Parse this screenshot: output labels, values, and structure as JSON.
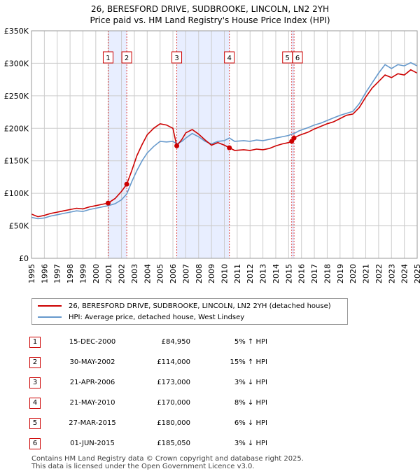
{
  "header": {
    "title": "26, BERESFORD DRIVE, SUDBROOKE, LINCOLN, LN2 2YH",
    "subtitle": "Price paid vs. HM Land Registry's House Price Index (HPI)"
  },
  "colors": {
    "property": "#cc0000",
    "hpi": "#6699cc",
    "shade": "#e8eeff",
    "grid": "#cccccc"
  },
  "legend": {
    "property_label": "26, BERESFORD DRIVE, SUDBROOKE, LINCOLN, LN2 2YH (detached house)",
    "hpi_label": "HPI: Average price, detached house, West Lindsey"
  },
  "chart_data": {
    "type": "line",
    "title": "Price paid vs. HM Land Registry's House Price Index (HPI)",
    "xlim": [
      1995,
      2025
    ],
    "ylim": [
      0,
      350000
    ],
    "y_ticks": [
      0,
      50000,
      100000,
      150000,
      200000,
      250000,
      300000,
      350000
    ],
    "y_tick_labels": [
      "£0",
      "£50K",
      "£100K",
      "£150K",
      "£200K",
      "£250K",
      "£300K",
      "£350K"
    ],
    "x_ticks": [
      "1995",
      "1996",
      "1997",
      "1998",
      "1999",
      "2000",
      "2001",
      "2002",
      "2003",
      "2004",
      "2005",
      "2006",
      "2007",
      "2008",
      "2009",
      "2010",
      "2011",
      "2012",
      "2013",
      "2014",
      "2015",
      "2016",
      "2017",
      "2018",
      "2019",
      "2020",
      "2021",
      "2022",
      "2023",
      "2024",
      "2025"
    ],
    "shaded_ranges": [
      [
        2000.96,
        2002.41
      ],
      [
        2006.3,
        2010.39
      ],
      [
        2015.24,
        2015.42
      ]
    ],
    "series": [
      {
        "name": "26, BERESFORD DRIVE, SUDBROOKE, LINCOLN, LN2 2YH (detached house)",
        "color": "#cc0000",
        "x": [
          1995,
          1995.5,
          1996,
          1996.5,
          1997,
          1997.5,
          1998,
          1998.5,
          1999,
          1999.5,
          2000,
          2000.5,
          2000.96,
          2001.5,
          2002,
          2002.41,
          2002.8,
          2003.2,
          2003.6,
          2004,
          2004.5,
          2005,
          2005.5,
          2006,
          2006.3,
          2006.7,
          2007,
          2007.5,
          2008,
          2008.5,
          2009,
          2009.5,
          2010,
          2010.39,
          2010.8,
          2011.5,
          2012,
          2012.5,
          2013,
          2013.5,
          2014,
          2014.5,
          2015,
          2015.24,
          2015.42,
          2015.8,
          2016.5,
          2017,
          2017.5,
          2018,
          2018.5,
          2019,
          2019.5,
          2020,
          2020.5,
          2021,
          2021.5,
          2022,
          2022.5,
          2023,
          2023.5,
          2024,
          2024.5,
          2025
        ],
        "values": [
          68000,
          64000,
          66000,
          69000,
          71000,
          73000,
          75000,
          77000,
          76000,
          79000,
          81000,
          83000,
          84950,
          92000,
          103000,
          114000,
          135000,
          158000,
          175000,
          190000,
          200000,
          207000,
          205000,
          200000,
          173000,
          183000,
          193000,
          198000,
          191000,
          182000,
          174000,
          178000,
          174000,
          170000,
          166000,
          167000,
          166000,
          168000,
          167000,
          169000,
          173000,
          176000,
          178000,
          180000,
          185050,
          189000,
          194000,
          199000,
          203000,
          207000,
          210000,
          215000,
          220000,
          222000,
          232000,
          248000,
          262000,
          272000,
          282000,
          278000,
          284000,
          282000,
          290000,
          285000
        ]
      },
      {
        "name": "HPI: Average price, detached house, West Lindsey",
        "color": "#6699cc",
        "x": [
          1995,
          1995.5,
          1996,
          1996.5,
          1997,
          1997.5,
          1998,
          1998.5,
          1999,
          1999.5,
          2000,
          2000.5,
          2000.96,
          2001.5,
          2002,
          2002.41,
          2002.8,
          2003.2,
          2003.6,
          2004,
          2004.5,
          2005,
          2005.5,
          2006,
          2006.3,
          2006.7,
          2007,
          2007.5,
          2008,
          2008.5,
          2009,
          2009.5,
          2010,
          2010.39,
          2010.8,
          2011.5,
          2012,
          2012.5,
          2013,
          2013.5,
          2014,
          2014.5,
          2015,
          2015.24,
          2015.42,
          2015.8,
          2016.5,
          2017,
          2017.5,
          2018,
          2018.5,
          2019,
          2019.5,
          2020,
          2020.5,
          2021,
          2021.5,
          2022,
          2022.5,
          2023,
          2023.5,
          2024,
          2024.5,
          2025
        ],
        "values": [
          63000,
          61000,
          62000,
          65000,
          67000,
          69000,
          71000,
          73000,
          72000,
          75000,
          77000,
          79000,
          81000,
          84000,
          90000,
          99000,
          118000,
          135000,
          150000,
          162000,
          172000,
          180000,
          179000,
          180000,
          176000,
          180000,
          185000,
          192000,
          187000,
          180000,
          176000,
          180000,
          181000,
          185000,
          180000,
          181000,
          180000,
          182000,
          181000,
          183000,
          185000,
          187000,
          189000,
          191000,
          192000,
          196000,
          201000,
          205000,
          208000,
          212000,
          216000,
          220000,
          223000,
          226000,
          238000,
          255000,
          270000,
          285000,
          298000,
          292000,
          298000,
          296000,
          301000,
          296000
        ]
      }
    ],
    "sales": [
      {
        "label": "1",
        "x": 2000.96,
        "value": 84950
      },
      {
        "label": "2",
        "x": 2002.41,
        "value": 114000
      },
      {
        "label": "3",
        "x": 2006.3,
        "value": 173000
      },
      {
        "label": "4",
        "x": 2010.39,
        "value": 170000
      },
      {
        "label": "5",
        "x": 2015.24,
        "value": 180000
      },
      {
        "label": "6",
        "x": 2015.42,
        "value": 185050
      }
    ]
  },
  "table": {
    "rows": [
      {
        "num": "1",
        "date": "15-DEC-2000",
        "price": "£84,950",
        "hpi": "5% ↑ HPI"
      },
      {
        "num": "2",
        "date": "30-MAY-2002",
        "price": "£114,000",
        "hpi": "15% ↑ HPI"
      },
      {
        "num": "3",
        "date": "21-APR-2006",
        "price": "£173,000",
        "hpi": "3% ↓ HPI"
      },
      {
        "num": "4",
        "date": "21-MAY-2010",
        "price": "£170,000",
        "hpi": "8% ↓ HPI"
      },
      {
        "num": "5",
        "date": "27-MAR-2015",
        "price": "£180,000",
        "hpi": "6% ↓ HPI"
      },
      {
        "num": "6",
        "date": "01-JUN-2015",
        "price": "£185,050",
        "hpi": "3% ↓ HPI"
      }
    ]
  },
  "footer": {
    "line1": "Contains HM Land Registry data © Crown copyright and database right 2025.",
    "line2": "This data is licensed under the Open Government Licence v3.0."
  }
}
